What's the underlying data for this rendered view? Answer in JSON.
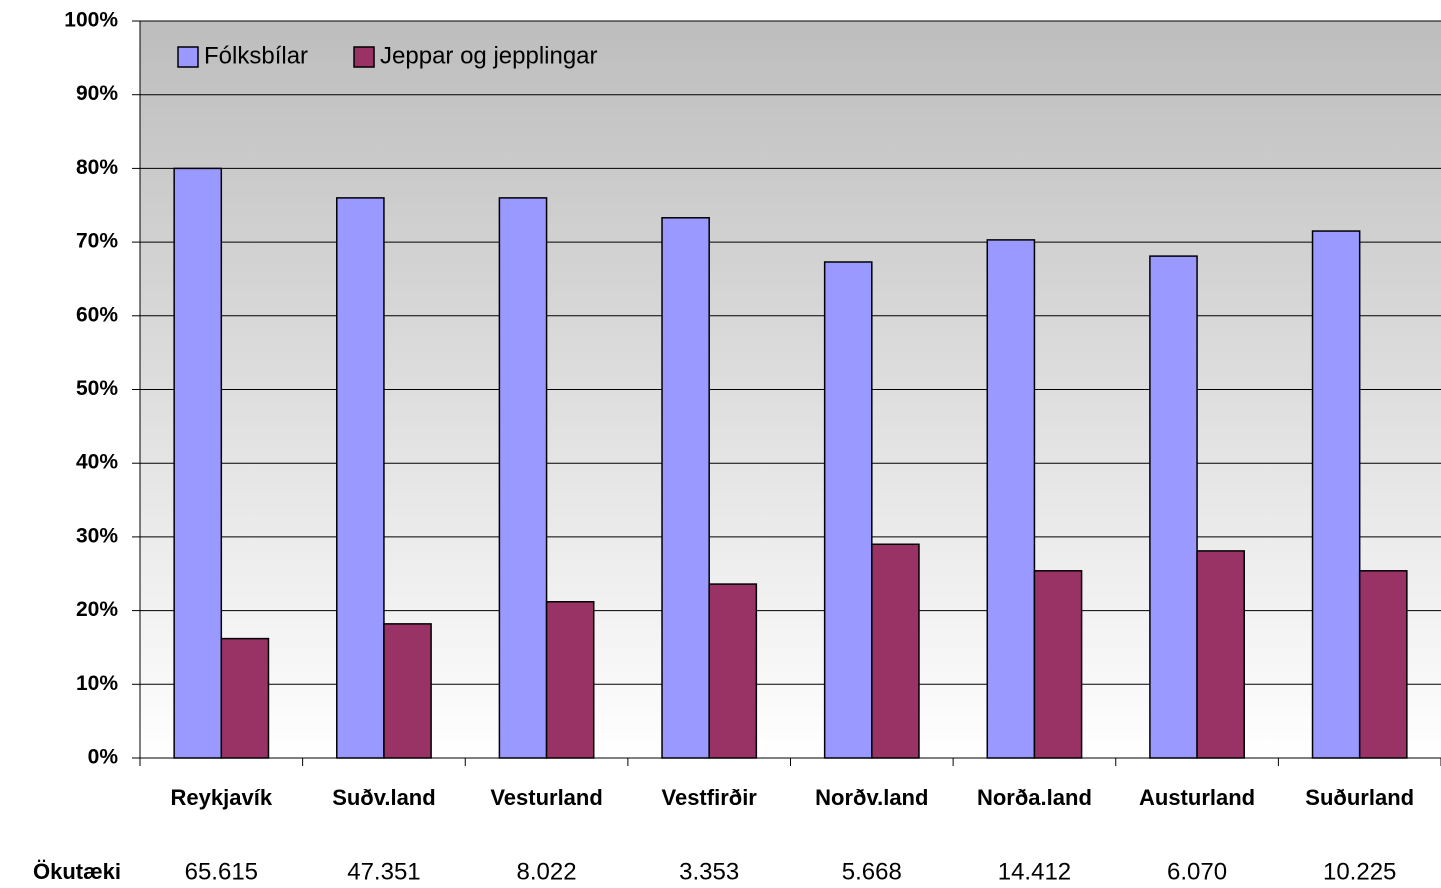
{
  "chart_data": {
    "type": "bar",
    "categories": [
      "Reykjavík",
      "Suðv.land",
      "Vesturland",
      "Vestfirðir",
      "Norðv.land",
      "Norða.land",
      "Austurland",
      "Suðurland"
    ],
    "series": [
      {
        "name": "Fólksbílar",
        "color": "#9999ff",
        "values": [
          80,
          76,
          76,
          73.3,
          67.3,
          70.3,
          68.1,
          71.5
        ]
      },
      {
        "name": "Jeppar og jepplingar",
        "color": "#993366",
        "values": [
          16.2,
          18.2,
          21.2,
          23.6,
          29,
          25.4,
          28.1,
          25.4
        ]
      }
    ],
    "ylim": [
      0,
      100
    ],
    "yticks": [
      {
        "value": 0,
        "label": "0%"
      },
      {
        "value": 10,
        "label": "10%"
      },
      {
        "value": 20,
        "label": "20%"
      },
      {
        "value": 30,
        "label": "30%"
      },
      {
        "value": 40,
        "label": "40%"
      },
      {
        "value": 50,
        "label": "50%"
      },
      {
        "value": 60,
        "label": "60%"
      },
      {
        "value": 70,
        "label": "70%"
      },
      {
        "value": 80,
        "label": "80%"
      },
      {
        "value": 90,
        "label": "90%"
      },
      {
        "value": 100,
        "label": "100%"
      }
    ],
    "grid": true,
    "legend": "top-left",
    "row_label": "Ökutæki",
    "row_values": [
      "65.615",
      "47.351",
      "8.022",
      "3.353",
      "5.668",
      "14.412",
      "6.070",
      "10.225"
    ]
  }
}
